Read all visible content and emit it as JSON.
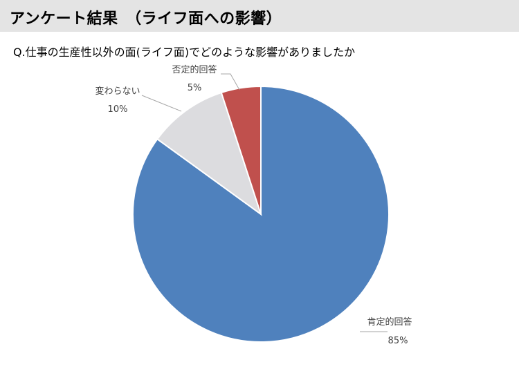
{
  "header": {
    "title": "アンケート結果　（ライフ面への影響）"
  },
  "question": "Q.仕事の生産性以外の面(ライフ面)でどのような影響がありましたか",
  "chart_data": {
    "type": "pie",
    "title": "",
    "slices": [
      {
        "label": "肯定的回答",
        "value": 85,
        "value_label": "85%",
        "color": "#4f81bd"
      },
      {
        "label": "変わらない",
        "value": 10,
        "value_label": "10%",
        "color": "#dcdcdf"
      },
      {
        "label": "否定的回答",
        "value": 5,
        "value_label": "5%",
        "color": "#c0504d"
      }
    ],
    "start_angle_deg": 0,
    "direction": "clockwise",
    "legend": "none",
    "data_labels": "outside with leader lines"
  }
}
